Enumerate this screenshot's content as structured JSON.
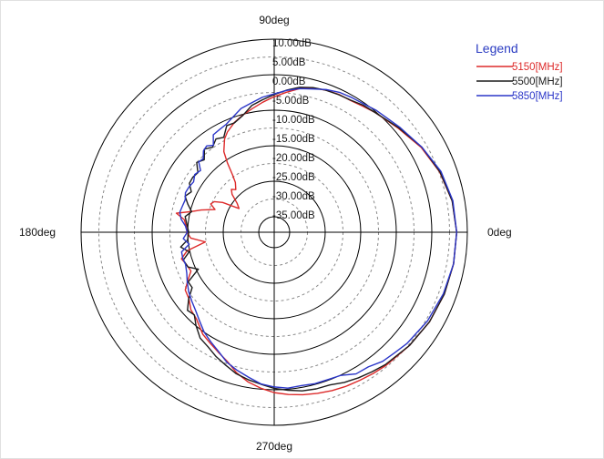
{
  "chart_data": {
    "type": "polar",
    "title": "",
    "angle_labels": [
      {
        "deg": 90,
        "label": "90deg"
      },
      {
        "deg": 180,
        "label": "180deg"
      },
      {
        "deg": 0,
        "label": "0deg"
      },
      {
        "deg": 270,
        "label": "270deg"
      }
    ],
    "radial_unit": "dB",
    "radial_range": [
      -40,
      10
    ],
    "ring_labels": [
      {
        "value": 10,
        "label": "10.00dB"
      },
      {
        "value": 5,
        "label": "5.00dB"
      },
      {
        "value": 0,
        "label": "0.00dB"
      },
      {
        "value": -5,
        "label": "-5.00dB"
      },
      {
        "value": -10,
        "label": "-10.00dB"
      },
      {
        "value": -15,
        "label": "-15.00dB"
      },
      {
        "value": -20,
        "label": "-20.00dB"
      },
      {
        "value": -25,
        "label": "-25.00dB"
      },
      {
        "value": -30,
        "label": "-30.00dB"
      },
      {
        "value": -35,
        "label": "-35.00dB"
      }
    ],
    "legend": {
      "title": "Legend",
      "placement": "top-right"
    },
    "series": [
      {
        "name": "5150[MHz]",
        "color": "#dd2a2a",
        "points": [
          [
            0,
            7.0
          ],
          [
            10,
            6.5
          ],
          [
            20,
            5.2
          ],
          [
            30,
            3.4
          ],
          [
            40,
            1.2
          ],
          [
            50,
            -0.3
          ],
          [
            55,
            -1.0
          ],
          [
            60,
            -1.5
          ],
          [
            65,
            -1.5
          ],
          [
            70,
            -1.8
          ],
          [
            75,
            -2.3
          ],
          [
            80,
            -3.3
          ],
          [
            85,
            -4.8
          ],
          [
            90,
            -6.2
          ],
          [
            95,
            -7.6
          ],
          [
            100,
            -9.0
          ],
          [
            105,
            -10.2
          ],
          [
            110,
            -11.5
          ],
          [
            115,
            -13.2
          ],
          [
            118,
            -14.6
          ],
          [
            122,
            -17.6
          ],
          [
            124,
            -20.8
          ],
          [
            126,
            -24.4
          ],
          [
            128,
            -26.6
          ],
          [
            132,
            -28.2
          ],
          [
            135,
            -27.3
          ],
          [
            138,
            -28.4
          ],
          [
            142,
            -31.1
          ],
          [
            146,
            -32.4
          ],
          [
            150,
            -27.6
          ],
          [
            153,
            -25.4
          ],
          [
            156,
            -24.8
          ],
          [
            159,
            -26.5
          ],
          [
            163,
            -22.9
          ],
          [
            166,
            -20.3
          ],
          [
            169,
            -16.3
          ],
          [
            172,
            -18.8
          ],
          [
            176,
            -19.5
          ],
          [
            180,
            -19.8
          ],
          [
            184,
            -20.8
          ],
          [
            188,
            -24.8
          ],
          [
            192,
            -19.3
          ],
          [
            196,
            -17.2
          ],
          [
            200,
            -18.0
          ],
          [
            205,
            -18.5
          ],
          [
            209,
            -16.6
          ],
          [
            213,
            -14.5
          ],
          [
            218,
            -13.9
          ],
          [
            223,
            -12.3
          ],
          [
            228,
            -11.6
          ],
          [
            235,
            -9.3
          ],
          [
            240,
            -8.3
          ],
          [
            245,
            -7.1
          ],
          [
            250,
            -5.7
          ],
          [
            255,
            -3.4
          ],
          [
            260,
            -1.6
          ],
          [
            265,
            -0.3
          ],
          [
            270,
            0.8
          ],
          [
            275,
            1.5
          ],
          [
            280,
            2.1
          ],
          [
            285,
            2.6
          ],
          [
            290,
            3.1
          ],
          [
            295,
            3.5
          ],
          [
            300,
            3.8
          ],
          [
            305,
            4.2
          ],
          [
            310,
            4.6
          ],
          [
            320,
            5.3
          ],
          [
            330,
            6.1
          ],
          [
            340,
            6.6
          ],
          [
            350,
            6.9
          ],
          [
            360,
            7.0
          ]
        ]
      },
      {
        "name": "5500[MHz]",
        "color": "#1c1c1c",
        "points": [
          [
            0,
            7.0
          ],
          [
            10,
            6.5
          ],
          [
            20,
            5.3
          ],
          [
            30,
            3.6
          ],
          [
            40,
            1.4
          ],
          [
            50,
            -0.3
          ],
          [
            55,
            -0.7
          ],
          [
            60,
            -1.4
          ],
          [
            65,
            -1.6
          ],
          [
            70,
            -1.8
          ],
          [
            75,
            -2.2
          ],
          [
            80,
            -2.9
          ],
          [
            85,
            -4.2
          ],
          [
            90,
            -5.6
          ],
          [
            95,
            -6.9
          ],
          [
            100,
            -8.1
          ],
          [
            105,
            -10.3
          ],
          [
            110,
            -11.6
          ],
          [
            114,
            -11.5
          ],
          [
            118,
            -14.1
          ],
          [
            122,
            -13.4
          ],
          [
            126,
            -14.8
          ],
          [
            130,
            -13.8
          ],
          [
            134,
            -16.0
          ],
          [
            138,
            -15.0
          ],
          [
            142,
            -17.1
          ],
          [
            146,
            -16.7
          ],
          [
            150,
            -16.8
          ],
          [
            154,
            -18.4
          ],
          [
            158,
            -17.3
          ],
          [
            162,
            -18.8
          ],
          [
            166,
            -20.4
          ],
          [
            170,
            -18.9
          ],
          [
            175,
            -19.7
          ],
          [
            180,
            -20.3
          ],
          [
            185,
            -19.9
          ],
          [
            189,
            -17.7
          ],
          [
            193,
            -19.8
          ],
          [
            197,
            -17.6
          ],
          [
            202,
            -18.2
          ],
          [
            206,
            -20.6
          ],
          [
            210,
            -16.4
          ],
          [
            214,
            -16.5
          ],
          [
            218,
            -13.8
          ],
          [
            222,
            -11.5
          ],
          [
            226,
            -12.0
          ],
          [
            230,
            -10.1
          ],
          [
            235,
            -8.0
          ],
          [
            240,
            -7.1
          ],
          [
            245,
            -5.7
          ],
          [
            250,
            -4.5
          ],
          [
            255,
            -3.1
          ],
          [
            260,
            -2.2
          ],
          [
            265,
            -1.4
          ],
          [
            270,
            -0.4
          ],
          [
            275,
            0.3
          ],
          [
            280,
            1.0
          ],
          [
            285,
            1.3
          ],
          [
            290,
            1.4
          ],
          [
            295,
            2.3
          ],
          [
            300,
            3.0
          ],
          [
            305,
            3.6
          ],
          [
            310,
            4.3
          ],
          [
            320,
            5.3
          ],
          [
            330,
            6.1
          ],
          [
            340,
            6.6
          ],
          [
            350,
            6.9
          ],
          [
            360,
            7.0
          ]
        ]
      },
      {
        "name": "5850[MHz]",
        "color": "#2b36c8",
        "points": [
          [
            0,
            7.0
          ],
          [
            10,
            6.7
          ],
          [
            20,
            5.6
          ],
          [
            30,
            3.6
          ],
          [
            40,
            1.7
          ],
          [
            50,
            0.4
          ],
          [
            55,
            -0.3
          ],
          [
            60,
            -0.6
          ],
          [
            65,
            -0.9
          ],
          [
            70,
            -1.6
          ],
          [
            75,
            -2.6
          ],
          [
            80,
            -3.3
          ],
          [
            85,
            -4.3
          ],
          [
            90,
            -5.4
          ],
          [
            95,
            -6.2
          ],
          [
            100,
            -7.4
          ],
          [
            105,
            -8.3
          ],
          [
            110,
            -10.0
          ],
          [
            114,
            -11.1
          ],
          [
            118,
            -11.6
          ],
          [
            122,
            -12.0
          ],
          [
            125,
            -14.5
          ],
          [
            128,
            -13.5
          ],
          [
            131,
            -14.0
          ],
          [
            134,
            -15.6
          ],
          [
            137,
            -15.3
          ],
          [
            140,
            -17.3
          ],
          [
            144,
            -16.7
          ],
          [
            148,
            -17.6
          ],
          [
            152,
            -17.2
          ],
          [
            156,
            -17.0
          ],
          [
            160,
            -17.7
          ],
          [
            164,
            -17.5
          ],
          [
            168,
            -17.2
          ],
          [
            172,
            -17.9
          ],
          [
            176,
            -19.3
          ],
          [
            180,
            -19.9
          ],
          [
            184,
            -18.7
          ],
          [
            188,
            -20.2
          ],
          [
            192,
            -17.7
          ],
          [
            196,
            -17.6
          ],
          [
            200,
            -17.8
          ],
          [
            205,
            -17.2
          ],
          [
            210,
            -16.1
          ],
          [
            215,
            -15.0
          ],
          [
            220,
            -14.1
          ],
          [
            225,
            -13.1
          ],
          [
            230,
            -11.7
          ],
          [
            235,
            -10.0
          ],
          [
            240,
            -8.7
          ],
          [
            245,
            -7.3
          ],
          [
            250,
            -5.4
          ],
          [
            255,
            -4.1
          ],
          [
            260,
            -2.9
          ],
          [
            265,
            -1.5
          ],
          [
            270,
            -0.8
          ],
          [
            275,
            -0.3
          ],
          [
            280,
            -0.5
          ],
          [
            285,
            -0.2
          ],
          [
            290,
            -0.2
          ],
          [
            295,
            0.1
          ],
          [
            300,
            1.7
          ],
          [
            305,
            1.9
          ],
          [
            310,
            3.1
          ],
          [
            315,
            3.6
          ],
          [
            320,
            4.4
          ],
          [
            330,
            5.5
          ],
          [
            340,
            6.3
          ],
          [
            350,
            6.9
          ],
          [
            360,
            7.0
          ]
        ]
      }
    ]
  }
}
